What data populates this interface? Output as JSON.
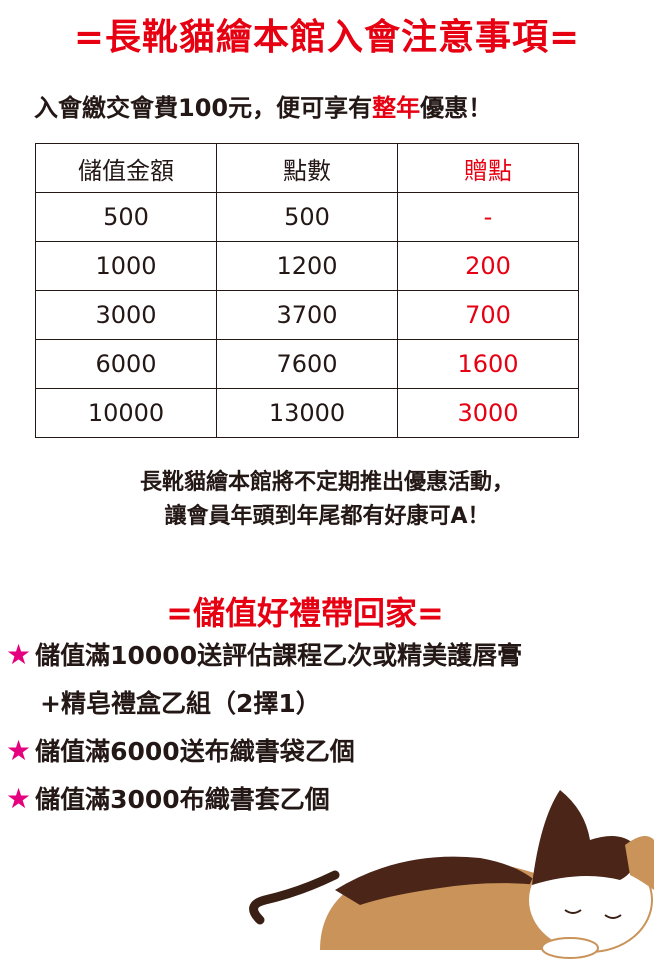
{
  "title": "=長靴貓繪本館入會注意事項=",
  "intro": {
    "before": "入會繳交會費100元，便可享有",
    "highlight": "整年",
    "after": "優惠！"
  },
  "table": {
    "headers": [
      "儲值金額",
      "點數",
      "贈點"
    ],
    "rows": [
      [
        "500",
        "500",
        "-"
      ],
      [
        "1000",
        "1200",
        "200"
      ],
      [
        "3000",
        "3700",
        "700"
      ],
      [
        "6000",
        "7600",
        "1600"
      ],
      [
        "10000",
        "13000",
        "3000"
      ]
    ]
  },
  "note": [
    "長靴貓繪本館將不定期推出優惠活動，",
    "讓會員年頭到年尾都有好康可A！"
  ],
  "gifts_title": "=儲值好禮帶回家=",
  "gifts": [
    {
      "star": "★",
      "text": "儲值滿10000送評估課程乙次或精美護唇膏"
    },
    {
      "star": "",
      "text": "+精皂禮盒乙組（2擇1）"
    },
    {
      "star": "★",
      "text": "儲值滿6000送布織書袋乙個"
    },
    {
      "star": "★",
      "text": "儲值滿3000布織書套乙個"
    }
  ],
  "colors": {
    "accent_red": "#e60012",
    "star_pink": "#e4007f",
    "text": "#231815"
  }
}
